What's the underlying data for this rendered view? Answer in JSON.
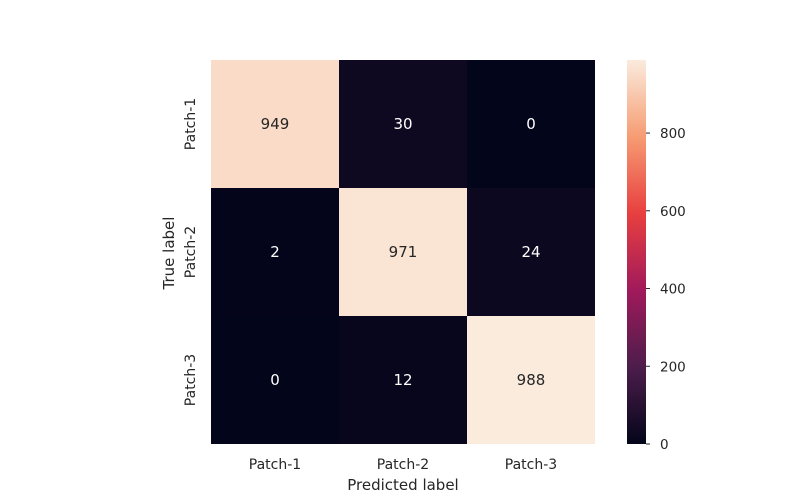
{
  "chart_data": {
    "type": "heatmap",
    "title": "",
    "xlabel": "Predicted label",
    "ylabel": "True label",
    "x_categories": [
      "Patch-1",
      "Patch-2",
      "Patch-3"
    ],
    "y_categories": [
      "Patch-1",
      "Patch-2",
      "Patch-3"
    ],
    "values": [
      [
        949,
        30,
        0
      ],
      [
        2,
        971,
        24
      ],
      [
        0,
        12,
        988
      ]
    ],
    "colorbar": {
      "min": 0,
      "max": 988,
      "ticks": [
        0,
        200,
        400,
        600,
        800
      ],
      "tick_labels": [
        "0",
        "200",
        "400",
        "600",
        "800"
      ]
    },
    "colormap": [
      "#03051A",
      "#4C1D4B",
      "#A11A5B",
      "#E83F3F",
      "#F69C73",
      "#FAEBDD"
    ]
  }
}
